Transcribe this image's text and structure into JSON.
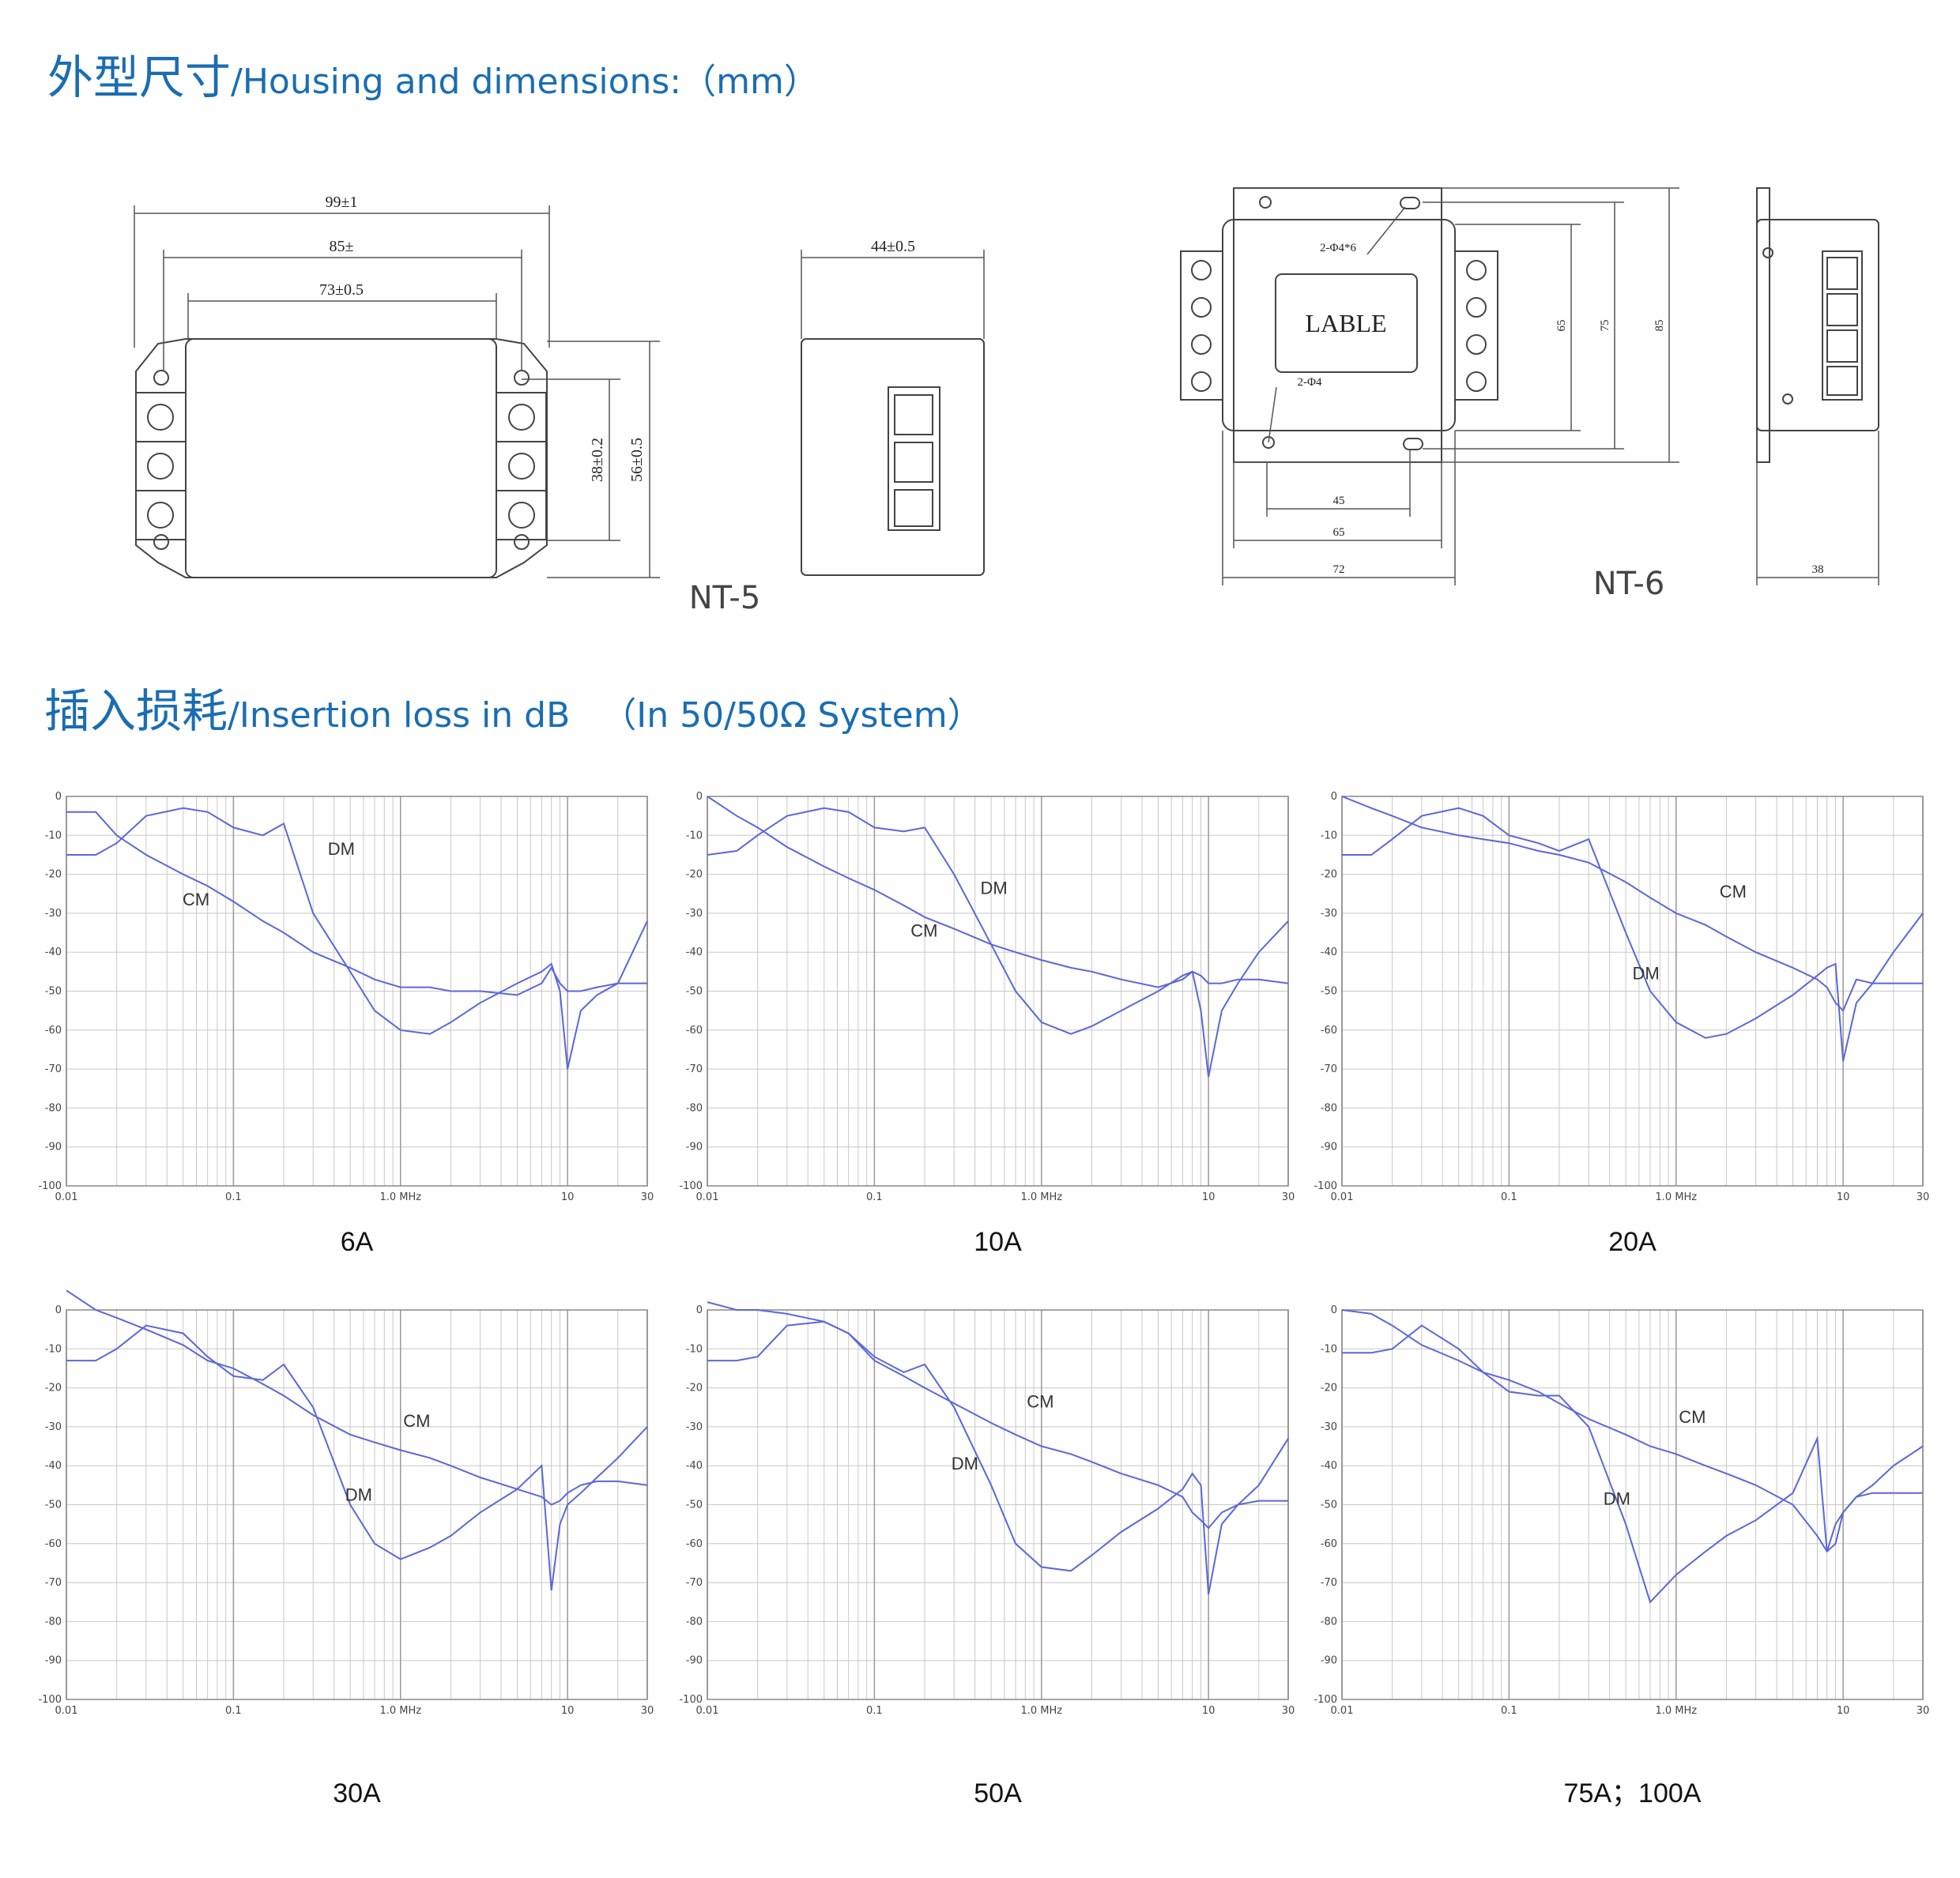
{
  "headings": [
    {
      "cn": "外型尺寸",
      "en": "/Housing and dimensions:（mm）"
    },
    {
      "cn": "插入损耗",
      "en": "/Insertion loss in dB",
      "note": "（In 50/50Ω System）"
    }
  ],
  "drawings": {
    "nt5": {
      "label": "NT-5",
      "width_overall": "99±1",
      "width_mid": "85±",
      "width_body": "73±0.5",
      "height_holes": "38±0.2",
      "height_overall": "56±0.5",
      "depth": "44±0.5"
    },
    "nt6": {
      "label": "NT-6",
      "top_holes": "2-Φ4*6",
      "label_plate": "LABLE",
      "bottom_holes": "2-Φ4",
      "h1": "65",
      "h2": "75",
      "h3": "85",
      "w1": "45",
      "w2": "65",
      "w3": "72",
      "depth": "38"
    }
  },
  "chart_data": [
    {
      "type": "line",
      "title": "6A",
      "log_x": true,
      "grid": true,
      "x": [
        0.01,
        0.015,
        0.02,
        0.03,
        0.05,
        0.07,
        0.1,
        0.15,
        0.2,
        0.3,
        0.5,
        0.7,
        1,
        1.5,
        2,
        3,
        5,
        7,
        8,
        9,
        10,
        12,
        15,
        20,
        30
      ],
      "xlim": [
        0.01,
        30
      ],
      "xticks": [
        {
          "value": 0.01,
          "label": "0.01"
        },
        {
          "value": 0.1,
          "label": "0.1"
        },
        {
          "value": 1,
          "label": "1.0 MHz"
        },
        10,
        30
      ],
      "ylim": [
        -100,
        0
      ],
      "yticks": [
        0,
        -10,
        -20,
        -30,
        -40,
        -50,
        -60,
        -70,
        -80,
        -90,
        -100
      ],
      "series": [
        {
          "name": "CM",
          "color": "#5b67d8",
          "values": [
            -4,
            -4,
            -10,
            -15,
            -20,
            -23,
            -27,
            -32,
            -35,
            -40,
            -44,
            -47,
            -49,
            -49,
            -50,
            -50,
            -51,
            -48,
            -44,
            -48,
            -50,
            -50,
            -49,
            -48,
            -48
          ]
        },
        {
          "name": "DM",
          "color": "#5b67d8",
          "values": [
            -15,
            -15,
            -12,
            -5,
            -3,
            -4,
            -8,
            -10,
            -7,
            -30,
            -45,
            -55,
            -60,
            -61,
            -58,
            -53,
            -48,
            -45,
            -43,
            -50,
            -70,
            -55,
            -51,
            -48,
            -32
          ]
        }
      ]
    },
    {
      "type": "line",
      "title": "10A",
      "log_x": true,
      "grid": true,
      "x": [
        0.01,
        0.015,
        0.02,
        0.03,
        0.05,
        0.07,
        0.1,
        0.15,
        0.2,
        0.3,
        0.5,
        0.7,
        1,
        1.5,
        2,
        3,
        5,
        7,
        8,
        9,
        10,
        12,
        15,
        20,
        30
      ],
      "xlim": [
        0.01,
        30
      ],
      "xticks": [
        {
          "value": 0.01,
          "label": "0.01"
        },
        {
          "value": 0.1,
          "label": "0.1"
        },
        {
          "value": 1,
          "label": "1.0 MHz"
        },
        10,
        30
      ],
      "ylim": [
        -100,
        0
      ],
      "yticks": [
        0,
        -10,
        -20,
        -30,
        -40,
        -50,
        -60,
        -70,
        -80,
        -90,
        -100
      ],
      "series": [
        {
          "name": "CM",
          "color": "#5b67d8",
          "values": [
            0,
            -5,
            -8,
            -13,
            -18,
            -21,
            -24,
            -28,
            -31,
            -34,
            -38,
            -40,
            -42,
            -44,
            -45,
            -47,
            -49,
            -47,
            -45,
            -46,
            -48,
            -48,
            -47,
            -47,
            -48
          ]
        },
        {
          "name": "DM",
          "color": "#5b67d8",
          "values": [
            -15,
            -14,
            -10,
            -5,
            -3,
            -4,
            -8,
            -9,
            -8,
            -20,
            -38,
            -50,
            -58,
            -61,
            -59,
            -55,
            -50,
            -46,
            -45,
            -55,
            -72,
            -55,
            -48,
            -40,
            -32
          ]
        }
      ]
    },
    {
      "type": "line",
      "title": "20A",
      "log_x": true,
      "grid": true,
      "x": [
        0.01,
        0.015,
        0.02,
        0.03,
        0.05,
        0.07,
        0.1,
        0.15,
        0.2,
        0.3,
        0.5,
        0.7,
        1,
        1.5,
        2,
        3,
        5,
        7,
        8,
        9,
        10,
        12,
        15,
        20,
        30
      ],
      "xlim": [
        0.01,
        30
      ],
      "xticks": [
        {
          "value": 0.01,
          "label": "0.01"
        },
        {
          "value": 0.1,
          "label": "0.1"
        },
        {
          "value": 1,
          "label": "1.0 MHz"
        },
        10,
        30
      ],
      "ylim": [
        -100,
        0
      ],
      "yticks": [
        0,
        -10,
        -20,
        -30,
        -40,
        -50,
        -60,
        -70,
        -80,
        -90,
        -100
      ],
      "series": [
        {
          "name": "CM",
          "color": "#5b67d8",
          "values": [
            0,
            -3,
            -5,
            -8,
            -10,
            -11,
            -12,
            -14,
            -15,
            -17,
            -22,
            -26,
            -30,
            -33,
            -36,
            -40,
            -44,
            -47,
            -49,
            -53,
            -55,
            -47,
            -48,
            -48,
            -48
          ]
        },
        {
          "name": "DM",
          "color": "#5b67d8",
          "values": [
            -15,
            -15,
            -11,
            -5,
            -3,
            -5,
            -10,
            -12,
            -14,
            -11,
            -35,
            -50,
            -58,
            -62,
            -61,
            -57,
            -51,
            -46,
            -44,
            -43,
            -68,
            -53,
            -48,
            -40,
            -30
          ]
        }
      ]
    },
    {
      "type": "line",
      "title": "30A",
      "log_x": true,
      "grid": true,
      "x": [
        0.01,
        0.015,
        0.02,
        0.03,
        0.05,
        0.07,
        0.1,
        0.15,
        0.2,
        0.3,
        0.5,
        0.7,
        1,
        1.5,
        2,
        3,
        5,
        7,
        8,
        9,
        10,
        12,
        15,
        20,
        30
      ],
      "xlim": [
        0.01,
        30
      ],
      "xticks": [
        {
          "value": 0.01,
          "label": "0.01"
        },
        {
          "value": 0.1,
          "label": "0.1"
        },
        {
          "value": 1,
          "label": "1.0 MHz"
        },
        10,
        30
      ],
      "ylim": [
        -100,
        0
      ],
      "yticks": [
        0,
        -10,
        -20,
        -30,
        -40,
        -50,
        -60,
        -70,
        -80,
        -90,
        -100
      ],
      "series": [
        {
          "name": "CM",
          "color": "#5b67d8",
          "values": [
            5,
            0,
            -2,
            -5,
            -9,
            -13,
            -15,
            -19,
            -22,
            -27,
            -32,
            -34,
            -36,
            -38,
            -40,
            -43,
            -46,
            -48,
            -50,
            -49,
            -47,
            -45,
            -44,
            -44,
            -45
          ]
        },
        {
          "name": "DM",
          "color": "#5b67d8",
          "values": [
            -13,
            -13,
            -10,
            -4,
            -6,
            -12,
            -17,
            -18,
            -14,
            -25,
            -50,
            -60,
            -64,
            -61,
            -58,
            -52,
            -46,
            -40,
            -72,
            -55,
            -50,
            -47,
            -43,
            -38,
            -30
          ]
        }
      ]
    },
    {
      "type": "line",
      "title": "50A",
      "log_x": true,
      "grid": true,
      "x": [
        0.01,
        0.015,
        0.02,
        0.03,
        0.05,
        0.07,
        0.1,
        0.15,
        0.2,
        0.3,
        0.5,
        0.7,
        1,
        1.5,
        2,
        3,
        5,
        7,
        8,
        9,
        10,
        12,
        15,
        20,
        30
      ],
      "xlim": [
        0.01,
        30
      ],
      "xticks": [
        {
          "value": 0.01,
          "label": "0.01"
        },
        {
          "value": 0.1,
          "label": "0.1"
        },
        {
          "value": 1,
          "label": "1.0 MHz"
        },
        10,
        30
      ],
      "ylim": [
        -100,
        0
      ],
      "yticks": [
        0,
        -10,
        -20,
        -30,
        -40,
        -50,
        -60,
        -70,
        -80,
        -90,
        -100
      ],
      "series": [
        {
          "name": "CM",
          "color": "#5b67d8",
          "values": [
            2,
            0,
            0,
            -1,
            -3,
            -6,
            -13,
            -17,
            -20,
            -24,
            -29,
            -32,
            -35,
            -37,
            -39,
            -42,
            -45,
            -48,
            -52,
            -54,
            -56,
            -52,
            -50,
            -49,
            -49
          ]
        },
        {
          "name": "DM",
          "color": "#5b67d8",
          "values": [
            -13,
            -13,
            -12,
            -4,
            -3,
            -6,
            -12,
            -16,
            -14,
            -25,
            -45,
            -60,
            -66,
            -67,
            -63,
            -57,
            -51,
            -46,
            -42,
            -45,
            -73,
            -55,
            -50,
            -45,
            -33
          ]
        }
      ]
    },
    {
      "type": "line",
      "title": "75A；100A",
      "log_x": true,
      "grid": true,
      "x": [
        0.01,
        0.015,
        0.02,
        0.03,
        0.05,
        0.07,
        0.1,
        0.15,
        0.2,
        0.3,
        0.5,
        0.7,
        1,
        1.5,
        2,
        3,
        5,
        7,
        8,
        9,
        10,
        12,
        15,
        20,
        30
      ],
      "xlim": [
        0.01,
        30
      ],
      "xticks": [
        {
          "value": 0.01,
          "label": "0.01"
        },
        {
          "value": 0.1,
          "label": "0.1"
        },
        {
          "value": 1,
          "label": "1.0 MHz"
        },
        10,
        30
      ],
      "ylim": [
        -100,
        0
      ],
      "yticks": [
        0,
        -10,
        -20,
        -30,
        -40,
        -50,
        -60,
        -70,
        -80,
        -90,
        -100
      ],
      "series": [
        {
          "name": "CM",
          "color": "#5b67d8",
          "values": [
            0,
            -1,
            -4,
            -9,
            -13,
            -16,
            -18,
            -21,
            -24,
            -28,
            -32,
            -35,
            -37,
            -40,
            -42,
            -45,
            -50,
            -58,
            -62,
            -60,
            -52,
            -48,
            -47,
            -47,
            -47
          ]
        },
        {
          "name": "DM",
          "color": "#5b67d8",
          "values": [
            -11,
            -11,
            -10,
            -4,
            -10,
            -16,
            -21,
            -22,
            -22,
            -30,
            -55,
            -75,
            -68,
            -62,
            -58,
            -54,
            -47,
            -33,
            -62,
            -55,
            -52,
            -48,
            -45,
            -40,
            -35
          ]
        }
      ]
    }
  ]
}
